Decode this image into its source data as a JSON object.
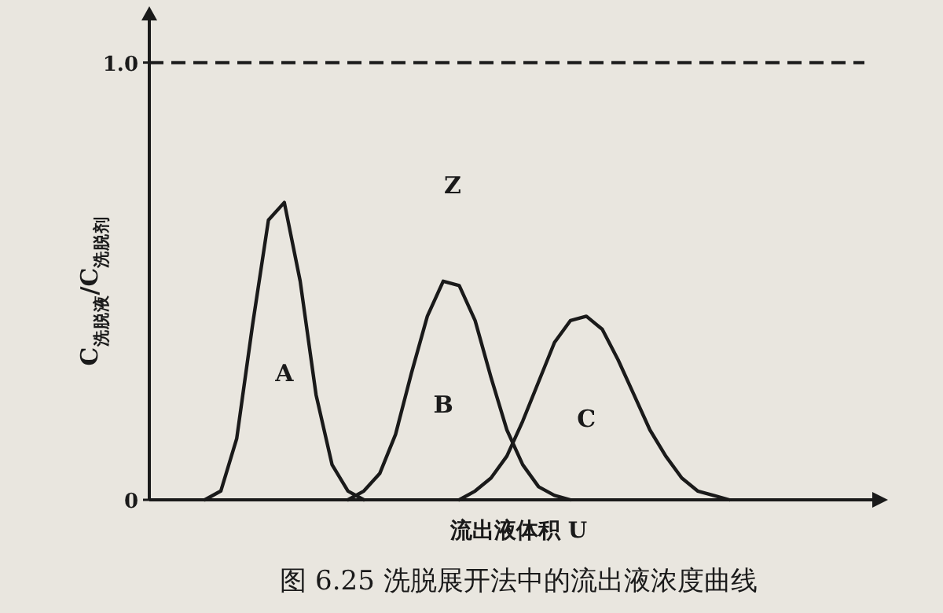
{
  "chart_data": {
    "type": "line",
    "title": "图 6.25  洗脱展开法中的流出液浓度曲线",
    "xlabel": "流出液体积 U",
    "ylabel": "C$_{洗脱液}$/C$_{洗脱剂}$",
    "categories": [
      null,
      null,
      null,
      null,
      null,
      null,
      null,
      null,
      null,
      null,
      null,
      null,
      null,
      null,
      null,
      null,
      null,
      null,
      null,
      null,
      null,
      null,
      null,
      null,
      null,
      null,
      null,
      null,
      null,
      null,
      null,
      null,
      null,
      null,
      null,
      null,
      null,
      null,
      null,
      null,
      null,
      null,
      null,
      null,
      null
    ],
    "series": [
      {
        "name": "A",
        "color": "#1a1a1a",
        "values": [
          null,
          null,
          null,
          0,
          0.02,
          0.14,
          0.4,
          0.64,
          0.68,
          0.5,
          0.24,
          0.08,
          0.02,
          0,
          null,
          null,
          null,
          null,
          null,
          null,
          null,
          null,
          null,
          null,
          null,
          null,
          null,
          null,
          null,
          null,
          null,
          null,
          null,
          null,
          null,
          null,
          null,
          null,
          null,
          null,
          null,
          null,
          null,
          null,
          null
        ]
      },
      {
        "name": "B",
        "color": "#1a1a1a",
        "values": [
          null,
          null,
          null,
          null,
          null,
          null,
          null,
          null,
          null,
          null,
          null,
          null,
          0,
          0.02,
          0.06,
          0.15,
          0.29,
          0.42,
          0.5,
          0.49,
          0.41,
          0.28,
          0.16,
          0.08,
          0.03,
          0.01,
          0,
          null,
          null,
          null,
          null,
          null,
          null,
          null,
          null,
          null,
          null,
          null,
          null,
          null,
          null,
          null,
          null,
          null,
          null
        ]
      },
      {
        "name": "C",
        "color": "#1a1a1a",
        "values": [
          null,
          null,
          null,
          null,
          null,
          null,
          null,
          null,
          null,
          null,
          null,
          null,
          null,
          null,
          null,
          null,
          null,
          null,
          null,
          0,
          0.02,
          0.05,
          0.1,
          0.18,
          0.27,
          0.36,
          0.41,
          0.42,
          0.39,
          0.32,
          0.24,
          0.16,
          0.1,
          0.05,
          0.02,
          0.01,
          0,
          null,
          null,
          null,
          null,
          null,
          null,
          null,
          null
        ]
      }
    ],
    "ylim": [
      0,
      1.1
    ],
    "yticks": [
      0,
      {
        "value": 1,
        "label": "1.0"
      }
    ],
    "ref_lines": [
      {
        "axis": "y",
        "value": 1,
        "line_style": "dashed",
        "color": "#1a1a1a"
      }
    ],
    "annotations": [
      "Z"
    ],
    "grid": false,
    "legend": false,
    "marker": "none",
    "line_style": "solid"
  }
}
